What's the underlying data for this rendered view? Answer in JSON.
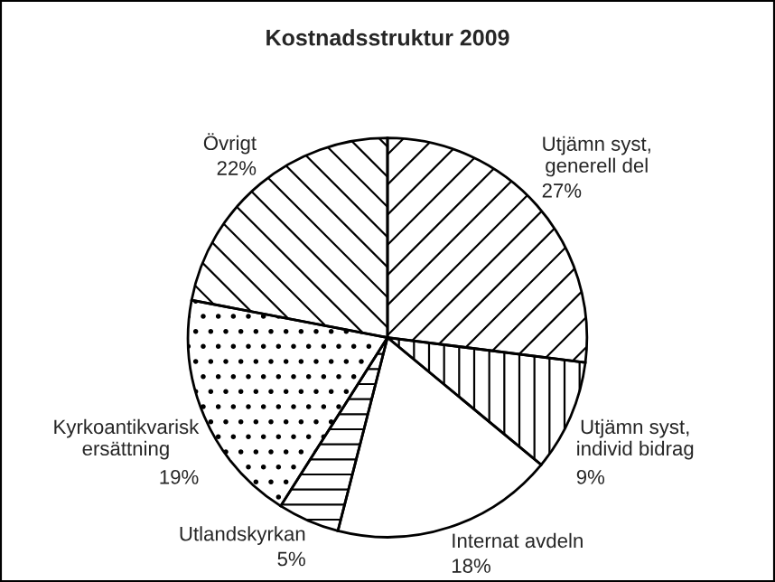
{
  "chart_data": {
    "type": "pie",
    "title": "Kostnadsstruktur 2009",
    "categories": [
      "Utjämn syst,\ngenerell del",
      "Utjämn syst,\nindivid bidrag",
      "Internat avdeln",
      "Utlandskyrkan",
      "Kyrkoantikvarisk\nersättning",
      "Övrigt"
    ],
    "values": [
      27,
      9,
      18,
      5,
      19,
      22
    ],
    "value_labels": [
      "27%",
      "9%",
      "18%",
      "5%",
      "19%",
      "22%"
    ],
    "colors": [
      "#ffffff",
      "#ffffff",
      "#ffffff",
      "#ffffff",
      "#ffffff",
      "#ffffff"
    ]
  }
}
